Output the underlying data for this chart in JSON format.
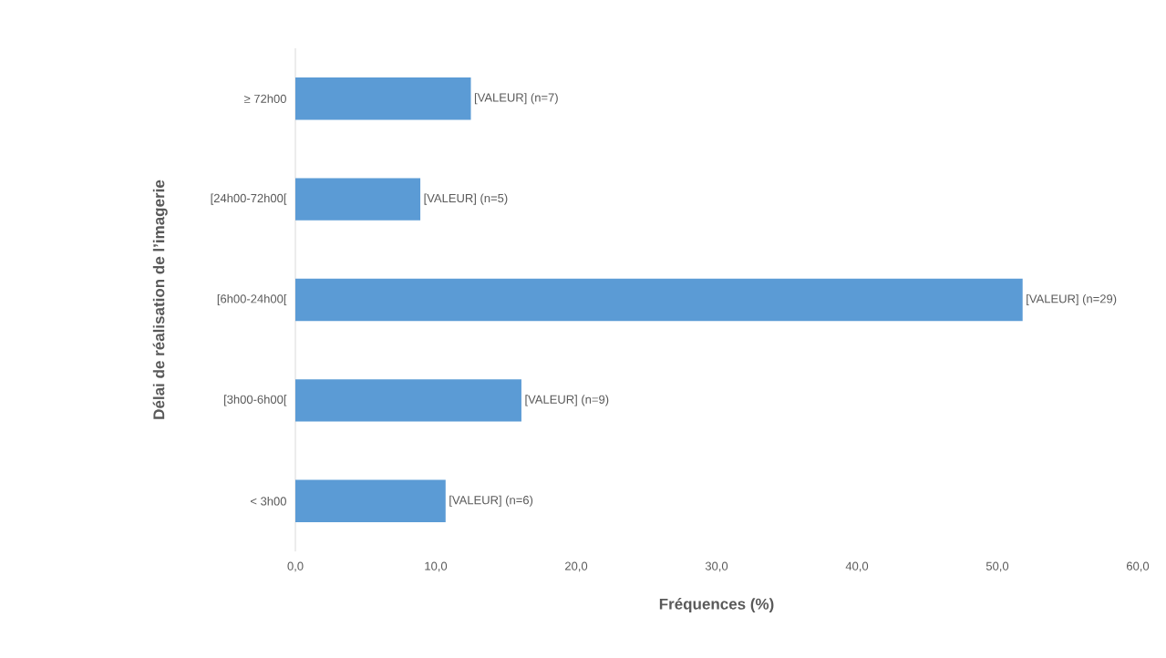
{
  "chart_data": {
    "type": "bar",
    "orientation": "horizontal",
    "xlabel": "Fréquences (%)",
    "ylabel": "Délai de réalisation de l’imagerie",
    "categories": [
      "≥ 72h00",
      "[24h00-72h00[",
      "[6h00-24h00[",
      "[3h00-6h00[",
      "< 3h00"
    ],
    "values": [
      12.5,
      8.9,
      51.8,
      16.1,
      10.7
    ],
    "annotations": [
      {
        "text": "[VALEUR] (n=7)",
        "x": 12.5,
        "y": "≥ 72h00"
      },
      {
        "text": "[VALEUR] (n=5)",
        "x": 8.9,
        "y": "[24h00-72h00["
      },
      {
        "text": "[VALEUR] (n=29)",
        "x": 51.8,
        "y": "[6h00-24h00["
      },
      {
        "text": "[VALEUR] (n=9)",
        "x": 16.1,
        "y": "[3h00-6h00["
      },
      {
        "text": "[VALEUR] (n=6)",
        "x": 10.7,
        "y": "< 3h00"
      }
    ],
    "color": "#5b9bd5",
    "xlim": [
      0,
      60
    ],
    "xticks": [
      {
        "value": 0,
        "label": "0,0"
      },
      {
        "value": 10,
        "label": "10,0"
      },
      {
        "value": 20,
        "label": "20,0"
      },
      {
        "value": 30,
        "label": "30,0"
      },
      {
        "value": 40,
        "label": "40,0"
      },
      {
        "value": 50,
        "label": "50,0"
      },
      {
        "value": 60,
        "label": "60,0"
      }
    ]
  }
}
